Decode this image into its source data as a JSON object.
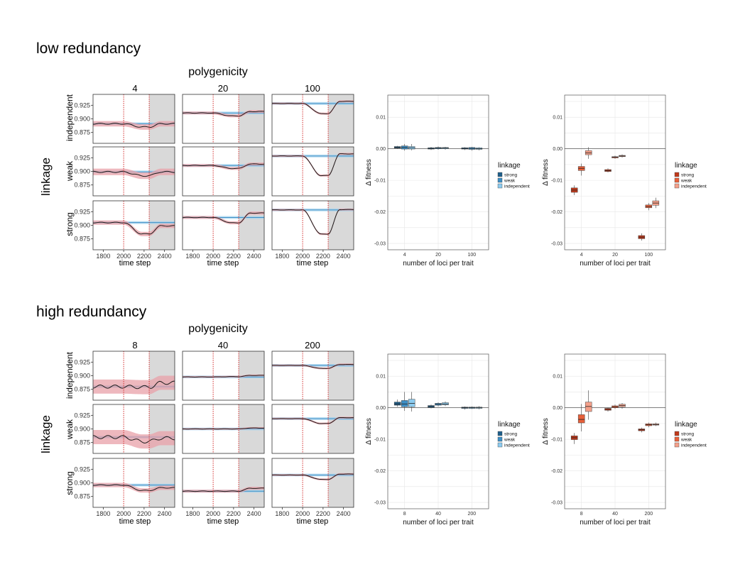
{
  "sections": [
    {
      "title": "low redundancy",
      "facet_title": "polygenicity",
      "row_strip_title": "linkage",
      "col_labels": [
        "4",
        "20",
        "100"
      ],
      "row_labels": [
        "independent",
        "weak",
        "strong"
      ],
      "x_ticks": [
        "1800",
        "2000",
        "2200",
        "2400"
      ],
      "x_label": "time step",
      "y_ticks": [
        "0.925",
        "0.900",
        "0.875"
      ],
      "boxplot_left": {
        "ylabel": "Δ fitness",
        "xlabel": "number of loci per trait",
        "y_ticks": [
          "0.01",
          "0.00",
          "-0.01",
          "-0.02",
          "-0.03"
        ],
        "x_ticks": [
          "4",
          "20",
          "100"
        ],
        "legend_title": "linkage",
        "legend_items": [
          "strong",
          "weak",
          "independent"
        ]
      },
      "boxplot_right": {
        "ylabel": "Δ fitness",
        "xlabel": "number of loci per trait",
        "y_ticks": [
          "0.01",
          "0.00",
          "-0.01",
          "-0.02",
          "-0.03"
        ],
        "x_ticks": [
          "4",
          "20",
          "100"
        ],
        "legend_title": "linkage",
        "legend_items": [
          "strong",
          "weak",
          "independent"
        ]
      }
    },
    {
      "title": "high redundancy",
      "facet_title": "polygenicity",
      "row_strip_title": "linkage",
      "col_labels": [
        "8",
        "40",
        "200"
      ],
      "row_labels": [
        "independent",
        "weak",
        "strong"
      ],
      "x_ticks": [
        "1800",
        "2000",
        "2200",
        "2400"
      ],
      "x_label": "time step",
      "y_ticks": [
        "0.925",
        "0.900",
        "0.875"
      ],
      "boxplot_left": {
        "ylabel": "Δ fitness",
        "xlabel": "number of loci per trait",
        "y_ticks": [
          "0.01",
          "0.00",
          "-0.01",
          "-0.02",
          "-0.03"
        ],
        "x_ticks": [
          "8",
          "40",
          "200"
        ],
        "legend_title": "linkage",
        "legend_items": [
          "strong",
          "weak",
          "independent"
        ]
      },
      "boxplot_right": {
        "ylabel": "Δ fitness",
        "xlabel": "number of loci per trait",
        "y_ticks": [
          "0.01",
          "0.00",
          "-0.01",
          "-0.02",
          "-0.03"
        ],
        "x_ticks": [
          "8",
          "40",
          "200"
        ],
        "legend_title": "linkage",
        "legend_items": [
          "strong",
          "weak",
          "independent"
        ]
      }
    }
  ],
  "colors": {
    "blue_strong": "#1f5f8b",
    "blue_weak": "#3d8fc6",
    "blue_independent": "#8ccbef",
    "red_strong": "#c0391b",
    "red_weak": "#e8603a",
    "red_independent": "#f4a08a",
    "ribbon_blue": "#9fd0ec",
    "ribbon_red": "#e8a0a8",
    "shade": "#d9d9d9",
    "vline": "#d43030",
    "mean_line": "#1a1a1a"
  },
  "chart_data": [
    {
      "type": "line",
      "title": "low redundancy",
      "facet_cols": [
        "4",
        "20",
        "100"
      ],
      "facet_rows": [
        "independent",
        "weak",
        "strong"
      ],
      "xlim": [
        1700,
        2500
      ],
      "events": {
        "shift_start": 2000,
        "shift_end": 2250,
        "shaded_from": 2250
      },
      "panels": [
        {
          "col": "4",
          "row": "independent",
          "ylim": [
            0.855,
            0.945
          ],
          "base": 0.891,
          "dip": 0.885,
          "final": 0.891,
          "ribbon": 0.004,
          "pre": 0.891
        },
        {
          "col": "20",
          "row": "independent",
          "ylim": [
            0.85,
            0.95
          ],
          "base": 0.912,
          "dip": 0.906,
          "final": 0.915,
          "ribbon": 0.002,
          "pre": 0.912
        },
        {
          "col": "100",
          "row": "independent",
          "ylim": [
            0.82,
            0.96
          ],
          "base": 0.934,
          "dip": 0.905,
          "final": 0.94,
          "ribbon": 0.002,
          "pre": 0.934
        },
        {
          "col": "4",
          "row": "weak",
          "ylim": [
            0.855,
            0.945
          ],
          "base": 0.899,
          "dip": 0.892,
          "final": 0.899,
          "ribbon": 0.005,
          "pre": 0.899
        },
        {
          "col": "20",
          "row": "weak",
          "ylim": [
            0.85,
            0.95
          ],
          "base": 0.912,
          "dip": 0.906,
          "final": 0.915,
          "ribbon": 0.002,
          "pre": 0.912
        },
        {
          "col": "100",
          "row": "weak",
          "ylim": [
            0.82,
            0.96
          ],
          "base": 0.934,
          "dip": 0.878,
          "final": 0.94,
          "ribbon": 0.002,
          "pre": 0.934
        },
        {
          "col": "4",
          "row": "strong",
          "ylim": [
            0.855,
            0.945
          ],
          "base": 0.905,
          "dip": 0.884,
          "final": 0.899,
          "ribbon": 0.003,
          "pre": 0.905
        },
        {
          "col": "20",
          "row": "strong",
          "ylim": [
            0.85,
            0.95
          ],
          "base": 0.916,
          "dip": 0.905,
          "final": 0.925,
          "ribbon": 0.002,
          "pre": 0.916
        },
        {
          "col": "100",
          "row": "strong",
          "ylim": [
            0.82,
            0.96
          ],
          "base": 0.934,
          "dip": 0.865,
          "final": 0.935,
          "ribbon": 0.002,
          "pre": 0.934
        }
      ]
    },
    {
      "type": "line",
      "title": "high redundancy",
      "facet_cols": [
        "8",
        "40",
        "200"
      ],
      "facet_rows": [
        "independent",
        "weak",
        "strong"
      ],
      "xlim": [
        1700,
        2500
      ],
      "events": {
        "shift_start": 2000,
        "shift_end": 2250,
        "shaded_from": 2250
      },
      "panels": [
        {
          "col": "8",
          "row": "independent",
          "ylim": [
            0.855,
            0.945
          ],
          "base": 0.88,
          "dip": 0.879,
          "final": 0.887,
          "ribbon": 0.012,
          "pre": 0.88
        },
        {
          "col": "40",
          "row": "independent",
          "ylim": [
            0.8,
            0.96
          ],
          "base": 0.876,
          "dip": 0.877,
          "final": 0.881,
          "ribbon": 0.002,
          "pre": 0.876
        },
        {
          "col": "200",
          "row": "independent",
          "ylim": [
            0.86,
            0.96
          ],
          "base": 0.931,
          "dip": 0.925,
          "final": 0.933,
          "ribbon": 0.001,
          "pre": 0.931
        },
        {
          "col": "8",
          "row": "weak",
          "ylim": [
            0.855,
            0.945
          ],
          "base": 0.885,
          "dip": 0.877,
          "final": 0.883,
          "ribbon": 0.012,
          "pre": 0.885
        },
        {
          "col": "40",
          "row": "weak",
          "ylim": [
            0.8,
            0.96
          ],
          "base": 0.88,
          "dip": 0.88,
          "final": 0.883,
          "ribbon": 0.002,
          "pre": 0.88
        },
        {
          "col": "200",
          "row": "weak",
          "ylim": [
            0.86,
            0.96
          ],
          "base": 0.931,
          "dip": 0.921,
          "final": 0.933,
          "ribbon": 0.001,
          "pre": 0.931
        },
        {
          "col": "8",
          "row": "strong",
          "ylim": [
            0.855,
            0.945
          ],
          "base": 0.896,
          "dip": 0.886,
          "final": 0.891,
          "ribbon": 0.003,
          "pre": 0.896
        },
        {
          "col": "40",
          "row": "strong",
          "ylim": [
            0.86,
            0.96
          ],
          "base": 0.893,
          "dip": 0.893,
          "final": 0.899,
          "ribbon": 0.002,
          "pre": 0.893
        },
        {
          "col": "200",
          "row": "strong",
          "ylim": [
            0.86,
            0.96
          ],
          "base": 0.926,
          "dip": 0.917,
          "final": 0.928,
          "ribbon": 0.001,
          "pre": 0.926
        }
      ]
    },
    {
      "type": "box",
      "panel": "low redundancy, blue",
      "ylim": [
        -0.032,
        0.017
      ],
      "categories": [
        "4",
        "20",
        "100"
      ],
      "series": [
        {
          "name": "strong",
          "boxes": [
            [
              0.0,
              0.0002,
              0.0004,
              0.0007,
              0.0009
            ],
            [
              -0.0004,
              -0.0001,
              0.0001,
              0.0003,
              0.0006
            ],
            [
              -0.0004,
              -0.0001,
              0.0001,
              0.0003,
              0.0005
            ]
          ]
        },
        {
          "name": "weak",
          "boxes": [
            [
              -0.0006,
              -0.0001,
              0.0004,
              0.0009,
              0.0015
            ],
            [
              -0.0003,
              0.0,
              0.0002,
              0.0004,
              0.0007
            ],
            [
              -0.0006,
              -0.0002,
              0.0001,
              0.0004,
              0.0006
            ]
          ]
        },
        {
          "name": "independent",
          "boxes": [
            [
              -0.0005,
              -0.0001,
              0.0003,
              0.0007,
              0.0015
            ],
            [
              -0.0003,
              0.0,
              0.0002,
              0.0004,
              0.0006
            ],
            [
              -0.0005,
              -0.0002,
              0.0,
              0.0003,
              0.0005
            ]
          ]
        }
      ]
    },
    {
      "type": "box",
      "panel": "low redundancy, red",
      "ylim": [
        -0.032,
        0.017
      ],
      "categories": [
        "4",
        "20",
        "100"
      ],
      "series": [
        {
          "name": "strong",
          "boxes": [
            [
              -0.0147,
              -0.0138,
              -0.0131,
              -0.0124,
              -0.0116
            ],
            [
              -0.0075,
              -0.0072,
              -0.0069,
              -0.0066,
              -0.0062
            ],
            [
              -0.0291,
              -0.0285,
              -0.028,
              -0.0275,
              -0.0268
            ]
          ]
        },
        {
          "name": "weak",
          "boxes": [
            [
              -0.0085,
              -0.0069,
              -0.0062,
              -0.0056,
              -0.0047
            ],
            [
              -0.0032,
              -0.0029,
              -0.0027,
              -0.0025,
              -0.0022
            ],
            [
              -0.0195,
              -0.0187,
              -0.0183,
              -0.0178,
              -0.0172
            ]
          ]
        },
        {
          "name": "independent",
          "boxes": [
            [
              -0.0032,
              -0.0019,
              -0.0013,
              -0.0006,
              0.0005
            ],
            [
              -0.0028,
              -0.0025,
              -0.0023,
              -0.0021,
              -0.0018
            ],
            [
              -0.0188,
              -0.0179,
              -0.0172,
              -0.0165,
              -0.0155
            ]
          ]
        }
      ]
    },
    {
      "type": "box",
      "panel": "high redundancy, blue",
      "ylim": [
        -0.032,
        0.017
      ],
      "categories": [
        "8",
        "40",
        "200"
      ],
      "series": [
        {
          "name": "strong",
          "boxes": [
            [
              0.0003,
              0.0008,
              0.0012,
              0.0018,
              0.0026
            ],
            [
              -0.0002,
              0.0001,
              0.0004,
              0.0007,
              0.001
            ],
            [
              -0.0006,
              -0.0002,
              0.0,
              0.0002,
              0.0004
            ]
          ]
        },
        {
          "name": "weak",
          "boxes": [
            [
              -0.001,
              0.0003,
              0.0012,
              0.0023,
              0.005
            ],
            [
              0.0004,
              0.0008,
              0.0011,
              0.0014,
              0.0017
            ],
            [
              -0.0004,
              -0.0002,
              0.0,
              0.0002,
              0.0004
            ]
          ]
        },
        {
          "name": "independent",
          "boxes": [
            [
              -0.0012,
              0.0003,
              0.0014,
              0.0027,
              0.005
            ],
            [
              0.0005,
              0.0009,
              0.0012,
              0.0016,
              0.002
            ],
            [
              -0.0005,
              -0.0002,
              0.0,
              0.0002,
              0.0005
            ]
          ]
        }
      ]
    },
    {
      "type": "box",
      "panel": "high redundancy, red",
      "ylim": [
        -0.032,
        0.017
      ],
      "categories": [
        "8",
        "40",
        "200"
      ],
      "series": [
        {
          "name": "strong",
          "boxes": [
            [
              -0.0115,
              -0.0101,
              -0.0095,
              -0.0089,
              -0.008
            ],
            [
              -0.0012,
              -0.0008,
              -0.0005,
              -0.0002,
              0.0001
            ],
            [
              -0.0078,
              -0.0073,
              -0.007,
              -0.0067,
              -0.0063
            ]
          ]
        },
        {
          "name": "weak",
          "boxes": [
            [
              -0.0075,
              -0.0048,
              -0.0037,
              -0.0022,
              0.0012
            ],
            [
              -0.0004,
              0.0,
              0.0003,
              0.0006,
              0.001
            ],
            [
              -0.0062,
              -0.0057,
              -0.0054,
              -0.0051,
              -0.0047
            ]
          ]
        },
        {
          "name": "independent",
          "boxes": [
            [
              -0.0038,
              -0.0012,
              0.0004,
              0.0018,
              0.0055
            ],
            [
              -0.0003,
              0.0003,
              0.0007,
              0.0011,
              0.0015
            ],
            [
              -0.0058,
              -0.0055,
              -0.0053,
              -0.0051,
              -0.0047
            ]
          ]
        }
      ]
    }
  ]
}
